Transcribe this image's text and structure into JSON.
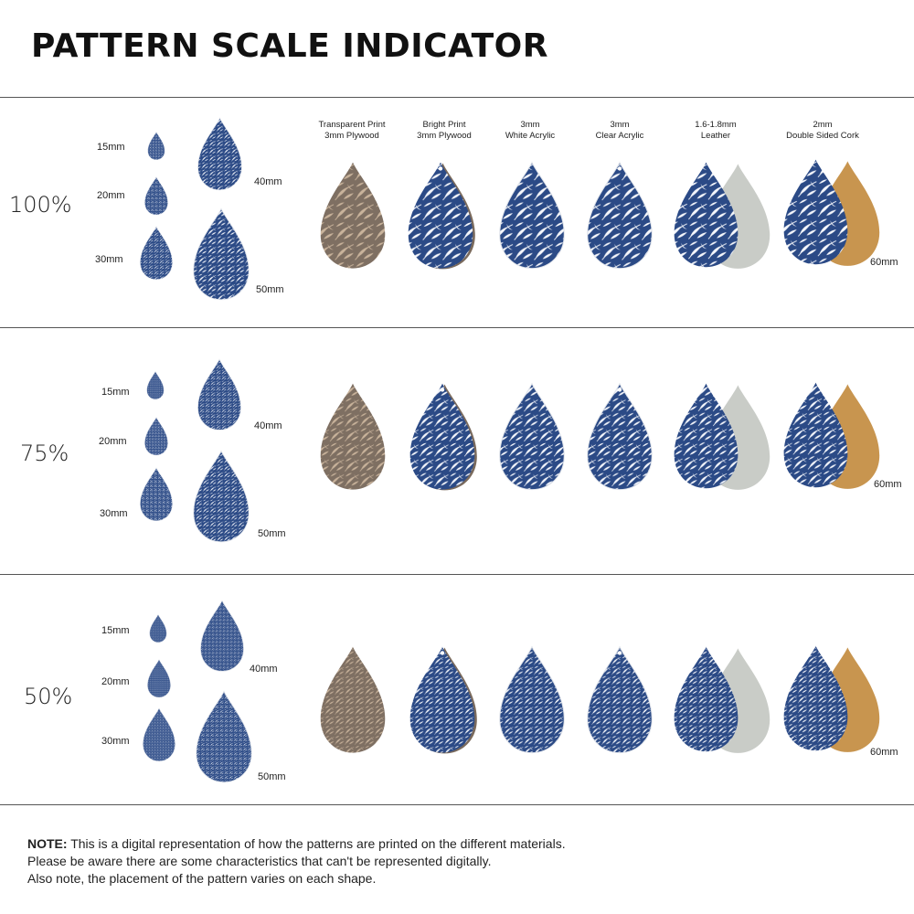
{
  "page": {
    "title": "PATTERN SCALE INDICATOR"
  },
  "colors": {
    "navy": "#2b4a86",
    "wood": "#7e6f62",
    "wood_leaf": "#c9b39b",
    "leather": "#c9ccc7",
    "cork": "#c8954f",
    "leaf_white": "#f4f6fb"
  },
  "materials": [
    {
      "id": "transparent-plywood",
      "line1": "Transparent Print",
      "line2": "3mm Plywood",
      "style": "wood"
    },
    {
      "id": "bright-plywood",
      "line1": "Bright Print",
      "line2": "3mm Plywood",
      "style": "navy-edge"
    },
    {
      "id": "white-acrylic",
      "line1": "3mm",
      "line2": "White Acrylic",
      "style": "navy"
    },
    {
      "id": "clear-acrylic",
      "line1": "3mm",
      "line2": "Clear Acrylic",
      "style": "navy-hole"
    },
    {
      "id": "leather",
      "line1": "1.6-1.8mm",
      "line2": "Leather",
      "style": "leather"
    },
    {
      "id": "cork",
      "line1": "2mm",
      "line2": "Double Sided Cork",
      "style": "cork"
    }
  ],
  "sizes": {
    "s15": "15mm",
    "s20": "20mm",
    "s30": "30mm",
    "s40": "40mm",
    "s50": "50mm",
    "s60": "60mm"
  },
  "scales": [
    {
      "label": "100%",
      "leaf_scale": 1.0
    },
    {
      "label": "75%",
      "leaf_scale": 0.75
    },
    {
      "label": "50%",
      "leaf_scale": 0.5
    }
  ],
  "note": {
    "bold": "NOTE:",
    "line1": " This is a digital representation of how the patterns are printed on the different materials.",
    "line2": "Please be aware there are some characteristics that can't be represented digitally.",
    "line3": "Also note, the placement of the pattern varies on each shape."
  }
}
